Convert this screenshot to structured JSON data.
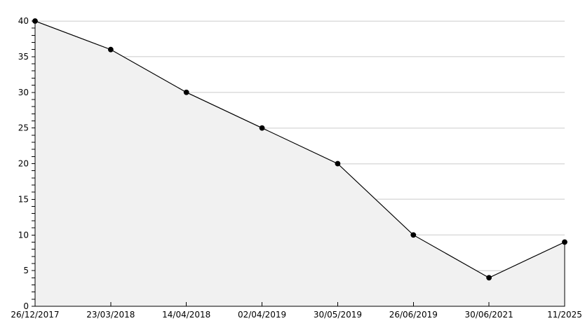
{
  "chart_data": {
    "type": "area",
    "title": "",
    "xlabel": "",
    "ylabel": "",
    "x_labels": [
      "26/12/2017",
      "23/03/2018",
      "14/04/2018",
      "02/04/2019",
      "30/05/2019",
      "26/06/2019",
      "30/06/2021",
      "11/2025"
    ],
    "values": [
      40,
      36,
      30,
      25,
      20,
      10,
      4,
      9
    ],
    "ylim": [
      0,
      40
    ],
    "y_major_step": 5,
    "y_minor_step": 1,
    "y_tick_labels": [
      "0",
      "5",
      "10",
      "15",
      "20",
      "25",
      "30",
      "35",
      "40"
    ],
    "grid": true,
    "legend": null,
    "colors": {
      "line": "#000000",
      "marker": "#000000",
      "fill": "#f1f1f1",
      "grid": "#dcdcdc",
      "axis": "#000000",
      "label": "#000000",
      "background": "#ffffff"
    }
  }
}
